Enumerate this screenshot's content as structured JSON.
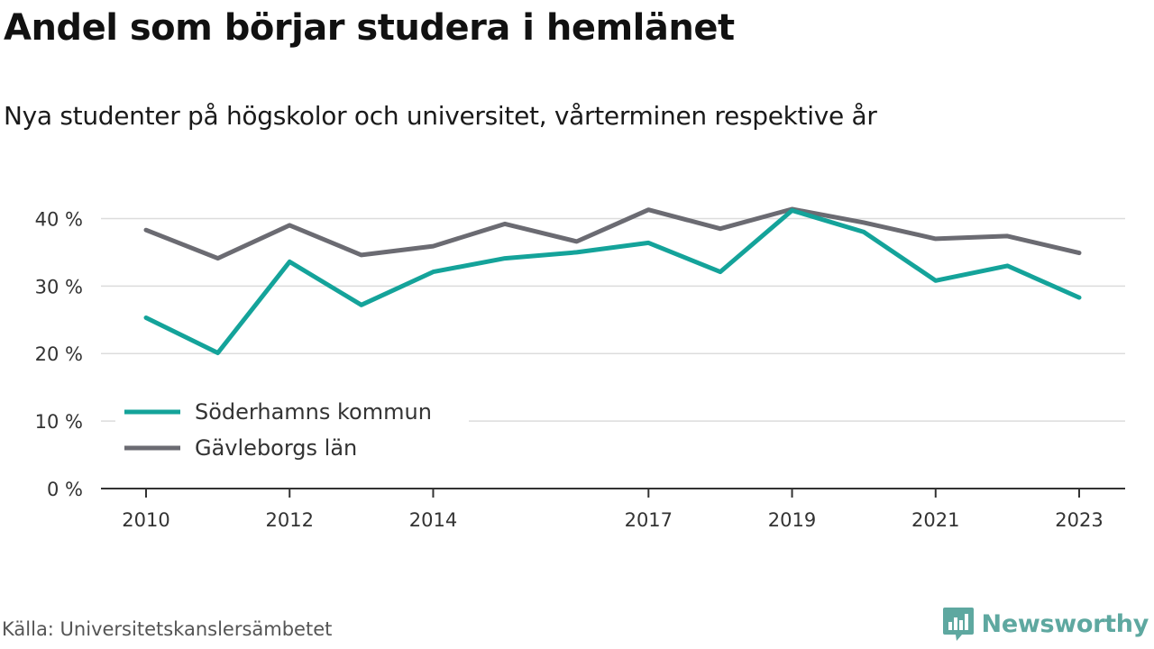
{
  "header": {
    "title": "Andel som börjar studera i hemlänet",
    "subtitle": "Nya studenter på högskolor och universitet, vårterminen respektive år"
  },
  "footer": {
    "source": "Källa: Universitetskanslersämbetet",
    "brand": "Newsworthy",
    "brand_icon": "bar-chart-speech-bubble-icon",
    "brand_color": "#5ea8a0"
  },
  "chart_data": {
    "type": "line",
    "x": [
      2010,
      2011,
      2012,
      2013,
      2014,
      2015,
      2016,
      2017,
      2018,
      2019,
      2020,
      2021,
      2022,
      2023
    ],
    "x_ticks": [
      "2010",
      "2012",
      "2014",
      "2017",
      "2019",
      "2021",
      "2023"
    ],
    "y_ticks": [
      0,
      10,
      20,
      30,
      40
    ],
    "y_tick_labels": [
      "0 %",
      "10 %",
      "20 %",
      "30 %",
      "40 %"
    ],
    "ylim": [
      0,
      45
    ],
    "grid": true,
    "legend_position": "bottom-left",
    "series": [
      {
        "name": "Söderhamns kommun",
        "color": "#14a39a",
        "values": [
          25.3,
          20.1,
          33.6,
          27.2,
          32.1,
          34.1,
          35.0,
          36.4,
          32.1,
          41.2,
          38.0,
          30.8,
          33.0,
          28.3
        ]
      },
      {
        "name": "Gävleborgs län",
        "color": "#6b6b72",
        "values": [
          38.3,
          34.1,
          39.0,
          34.6,
          35.9,
          39.2,
          36.6,
          41.3,
          38.5,
          41.4,
          39.4,
          37.0,
          37.4,
          34.9
        ]
      }
    ]
  }
}
